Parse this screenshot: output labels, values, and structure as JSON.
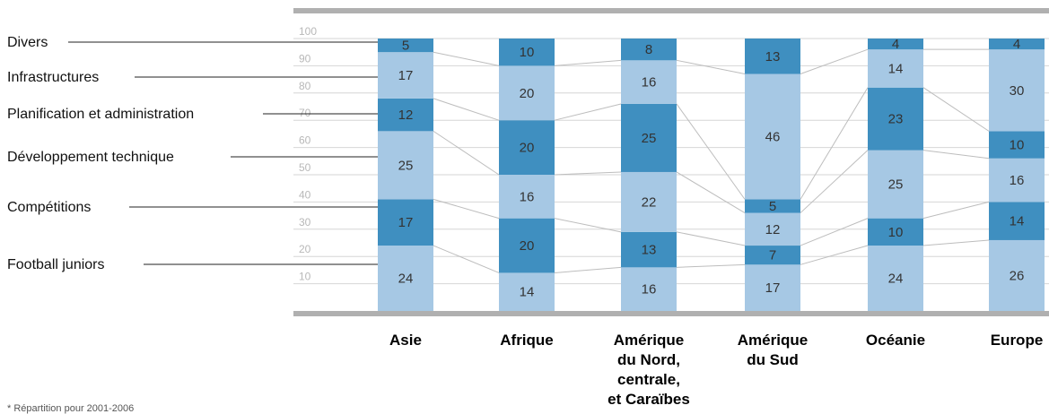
{
  "chart_data": {
    "type": "bar",
    "stacked": true,
    "categories": [
      [
        "Asie"
      ],
      [
        "Afrique"
      ],
      [
        "Amérique",
        "du Nord,",
        "centrale,",
        "et Caraïbes"
      ],
      [
        "Amérique",
        "du Sud"
      ],
      [
        "Océanie"
      ],
      [
        "Europe"
      ]
    ],
    "series": [
      {
        "name": "Football juniors",
        "values": [
          24,
          14,
          16,
          17,
          24,
          26
        ],
        "color": "#a6c8e4"
      },
      {
        "name": "Compétitions",
        "values": [
          17,
          20,
          13,
          7,
          10,
          14
        ],
        "color": "#3f8fc0"
      },
      {
        "name": "Développement technique",
        "values": [
          25,
          16,
          22,
          12,
          25,
          16
        ],
        "color": "#a6c8e4"
      },
      {
        "name": "Planification et administration",
        "values": [
          12,
          20,
          25,
          5,
          23,
          10
        ],
        "color": "#3f8fc0"
      },
      {
        "name": "Infrastructures",
        "values": [
          17,
          20,
          16,
          46,
          14,
          30
        ],
        "color": "#a6c8e4"
      },
      {
        "name": "Divers",
        "values": [
          5,
          10,
          8,
          13,
          4,
          4
        ],
        "color": "#3f8fc0"
      }
    ],
    "yticks": [
      10,
      20,
      30,
      40,
      50,
      60,
      70,
      80,
      90,
      100
    ],
    "ylim": [
      0,
      100
    ],
    "legend_placement": "left",
    "footnote": "* Répartition pour 2001-2006"
  }
}
